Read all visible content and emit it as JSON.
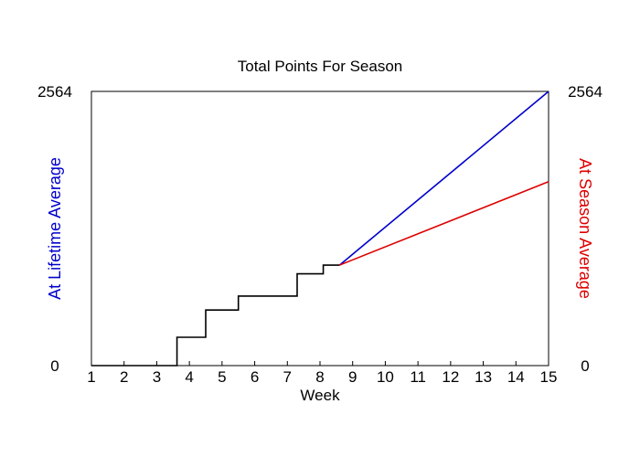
{
  "chart_data": {
    "type": "line",
    "title": "Total Points For Season",
    "xlabel": "Week",
    "xlim": [
      1,
      15
    ],
    "ylim": [
      0,
      2564
    ],
    "x_ticks": [
      "1",
      "2",
      "3",
      "4",
      "5",
      "6",
      "7",
      "8",
      "9",
      "10",
      "11",
      "12",
      "13",
      "14",
      "15"
    ],
    "y_ticks_left": [
      "0",
      "2564"
    ],
    "y_ticks_right": [
      "0",
      "2564"
    ],
    "left_ylabel": "At Lifetime Average",
    "right_ylabel": "At Season Average",
    "series": [
      {
        "color": "#000000",
        "step": true,
        "x": [
          1,
          3.62,
          3.62,
          4.5,
          4.5,
          5.5,
          5.5,
          7.3,
          7.3,
          8.1,
          8.1,
          8.6
        ],
        "y": [
          0,
          0,
          265,
          265,
          520,
          520,
          650,
          650,
          858,
          858,
          940,
          940
        ]
      },
      {
        "name": "At Lifetime Average",
        "color": "#0000cc",
        "x": [
          8.6,
          15
        ],
        "y": [
          940,
          2564
        ]
      },
      {
        "name": "At Season Average",
        "color": "#dd0000",
        "x": [
          8.6,
          15
        ],
        "y": [
          940,
          1720
        ]
      }
    ],
    "grid": false
  }
}
